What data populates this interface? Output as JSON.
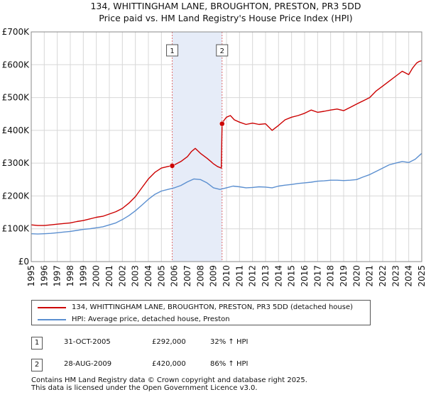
{
  "chart_data": {
    "type": "line",
    "title": "134, WHITTINGHAM LANE, BROUGHTON, PRESTON, PR3 5DD",
    "subtitle": "Price paid vs. HM Land Registry's House Price Index (HPI)",
    "xlim": [
      1995,
      2025
    ],
    "ylim": [
      0,
      700000
    ],
    "yticks": [
      0,
      100000,
      200000,
      300000,
      400000,
      500000,
      600000,
      700000
    ],
    "ytick_labels": [
      "£0",
      "£100K",
      "£200K",
      "£300K",
      "£400K",
      "£500K",
      "£600K",
      "£700K"
    ],
    "xtick_labels": [
      "1995",
      "1996",
      "1997",
      "1998",
      "1999",
      "2000",
      "2001",
      "2002",
      "2003",
      "2004",
      "2005",
      "2006",
      "2007",
      "2008",
      "2009",
      "2010",
      "2011",
      "2012",
      "2013",
      "2014",
      "2015",
      "2016",
      "2017",
      "2018",
      "2019",
      "2020",
      "2021",
      "2022",
      "2023",
      "2024",
      "2025"
    ],
    "grid": true,
    "series": [
      {
        "name": "134, WHITTINGHAM LANE, BROUGHTON, PRESTON, PR3 5DD (detached house)",
        "color": "#cc0000",
        "x": [
          1995.0,
          1995.5,
          1996.0,
          1996.5,
          1997.0,
          1997.5,
          1998.0,
          1998.5,
          1999.0,
          1999.5,
          2000.0,
          2000.5,
          2001.0,
          2001.5,
          2002.0,
          2002.5,
          2003.0,
          2003.5,
          2004.0,
          2004.5,
          2005.0,
          2005.5,
          2005.83,
          2006.0,
          2006.5,
          2007.0,
          2007.3,
          2007.6,
          2008.0,
          2008.5,
          2008.8,
          2009.0,
          2009.3,
          2009.6,
          2009.66,
          2009.8,
          2010.0,
          2010.3,
          2010.6,
          2011.0,
          2011.5,
          2012.0,
          2012.5,
          2013.0,
          2013.5,
          2014.0,
          2014.5,
          2015.0,
          2015.5,
          2016.0,
          2016.5,
          2017.0,
          2017.5,
          2018.0,
          2018.5,
          2019.0,
          2019.5,
          2020.0,
          2020.5,
          2021.0,
          2021.5,
          2022.0,
          2022.5,
          2023.0,
          2023.5,
          2024.0,
          2024.3,
          2024.6,
          2024.8,
          2025.0
        ],
        "values": [
          112000,
          110000,
          110000,
          112000,
          114000,
          116000,
          118000,
          122000,
          125000,
          130000,
          135000,
          138000,
          145000,
          152000,
          162000,
          178000,
          198000,
          225000,
          252000,
          272000,
          285000,
          290000,
          292000,
          295000,
          305000,
          320000,
          335000,
          345000,
          330000,
          315000,
          305000,
          298000,
          290000,
          285000,
          420000,
          430000,
          440000,
          445000,
          432000,
          425000,
          418000,
          422000,
          418000,
          420000,
          400000,
          415000,
          432000,
          440000,
          445000,
          452000,
          462000,
          455000,
          458000,
          462000,
          465000,
          460000,
          470000,
          480000,
          490000,
          500000,
          520000,
          535000,
          550000,
          565000,
          580000,
          570000,
          590000,
          605000,
          610000,
          612000
        ]
      },
      {
        "name": "HPI: Average price, detached house, Preston",
        "color": "#5b8fd0",
        "x": [
          1995.0,
          1995.5,
          1996.0,
          1996.5,
          1997.0,
          1997.5,
          1998.0,
          1998.5,
          1999.0,
          1999.5,
          2000.0,
          2000.5,
          2001.0,
          2001.5,
          2002.0,
          2002.5,
          2003.0,
          2003.5,
          2004.0,
          2004.5,
          2005.0,
          2005.5,
          2006.0,
          2006.5,
          2007.0,
          2007.5,
          2008.0,
          2008.5,
          2009.0,
          2009.5,
          2010.0,
          2010.5,
          2011.0,
          2011.5,
          2012.0,
          2012.5,
          2013.0,
          2013.5,
          2014.0,
          2014.5,
          2015.0,
          2015.5,
          2016.0,
          2016.5,
          2017.0,
          2017.5,
          2018.0,
          2018.5,
          2019.0,
          2019.5,
          2020.0,
          2020.5,
          2021.0,
          2021.5,
          2022.0,
          2022.5,
          2023.0,
          2023.5,
          2024.0,
          2024.5,
          2025.0
        ],
        "values": [
          85000,
          84000,
          85000,
          86000,
          88000,
          90000,
          92000,
          95000,
          98000,
          100000,
          103000,
          106000,
          112000,
          118000,
          128000,
          140000,
          155000,
          172000,
          190000,
          205000,
          215000,
          220000,
          225000,
          232000,
          243000,
          252000,
          250000,
          240000,
          225000,
          220000,
          225000,
          230000,
          228000,
          225000,
          226000,
          228000,
          227000,
          225000,
          230000,
          233000,
          235000,
          238000,
          240000,
          242000,
          245000,
          246000,
          248000,
          248000,
          247000,
          248000,
          250000,
          258000,
          265000,
          275000,
          285000,
          295000,
          300000,
          305000,
          302000,
          312000,
          330000
        ]
      }
    ],
    "markers": [
      {
        "label": "1",
        "x": 2005.83,
        "value": 292000
      },
      {
        "label": "2",
        "x": 2009.66,
        "value": 420000
      }
    ],
    "shaded_region": [
      2005.83,
      2009.66
    ]
  },
  "legend": {
    "property_label": "134, WHITTINGHAM LANE, BROUGHTON, PRESTON, PR3 5DD (detached house)",
    "hpi_label": "HPI: Average price, detached house, Preston"
  },
  "transactions": [
    {
      "badge": "1",
      "date": "31-OCT-2005",
      "price": "£292,000",
      "hpi_change": "32% ↑ HPI"
    },
    {
      "badge": "2",
      "date": "28-AUG-2009",
      "price": "£420,000",
      "hpi_change": "86% ↑ HPI"
    }
  ],
  "footer": {
    "line1": "Contains HM Land Registry data © Crown copyright and database right 2025.",
    "line2": "This data is licensed under the Open Government Licence v3.0."
  }
}
